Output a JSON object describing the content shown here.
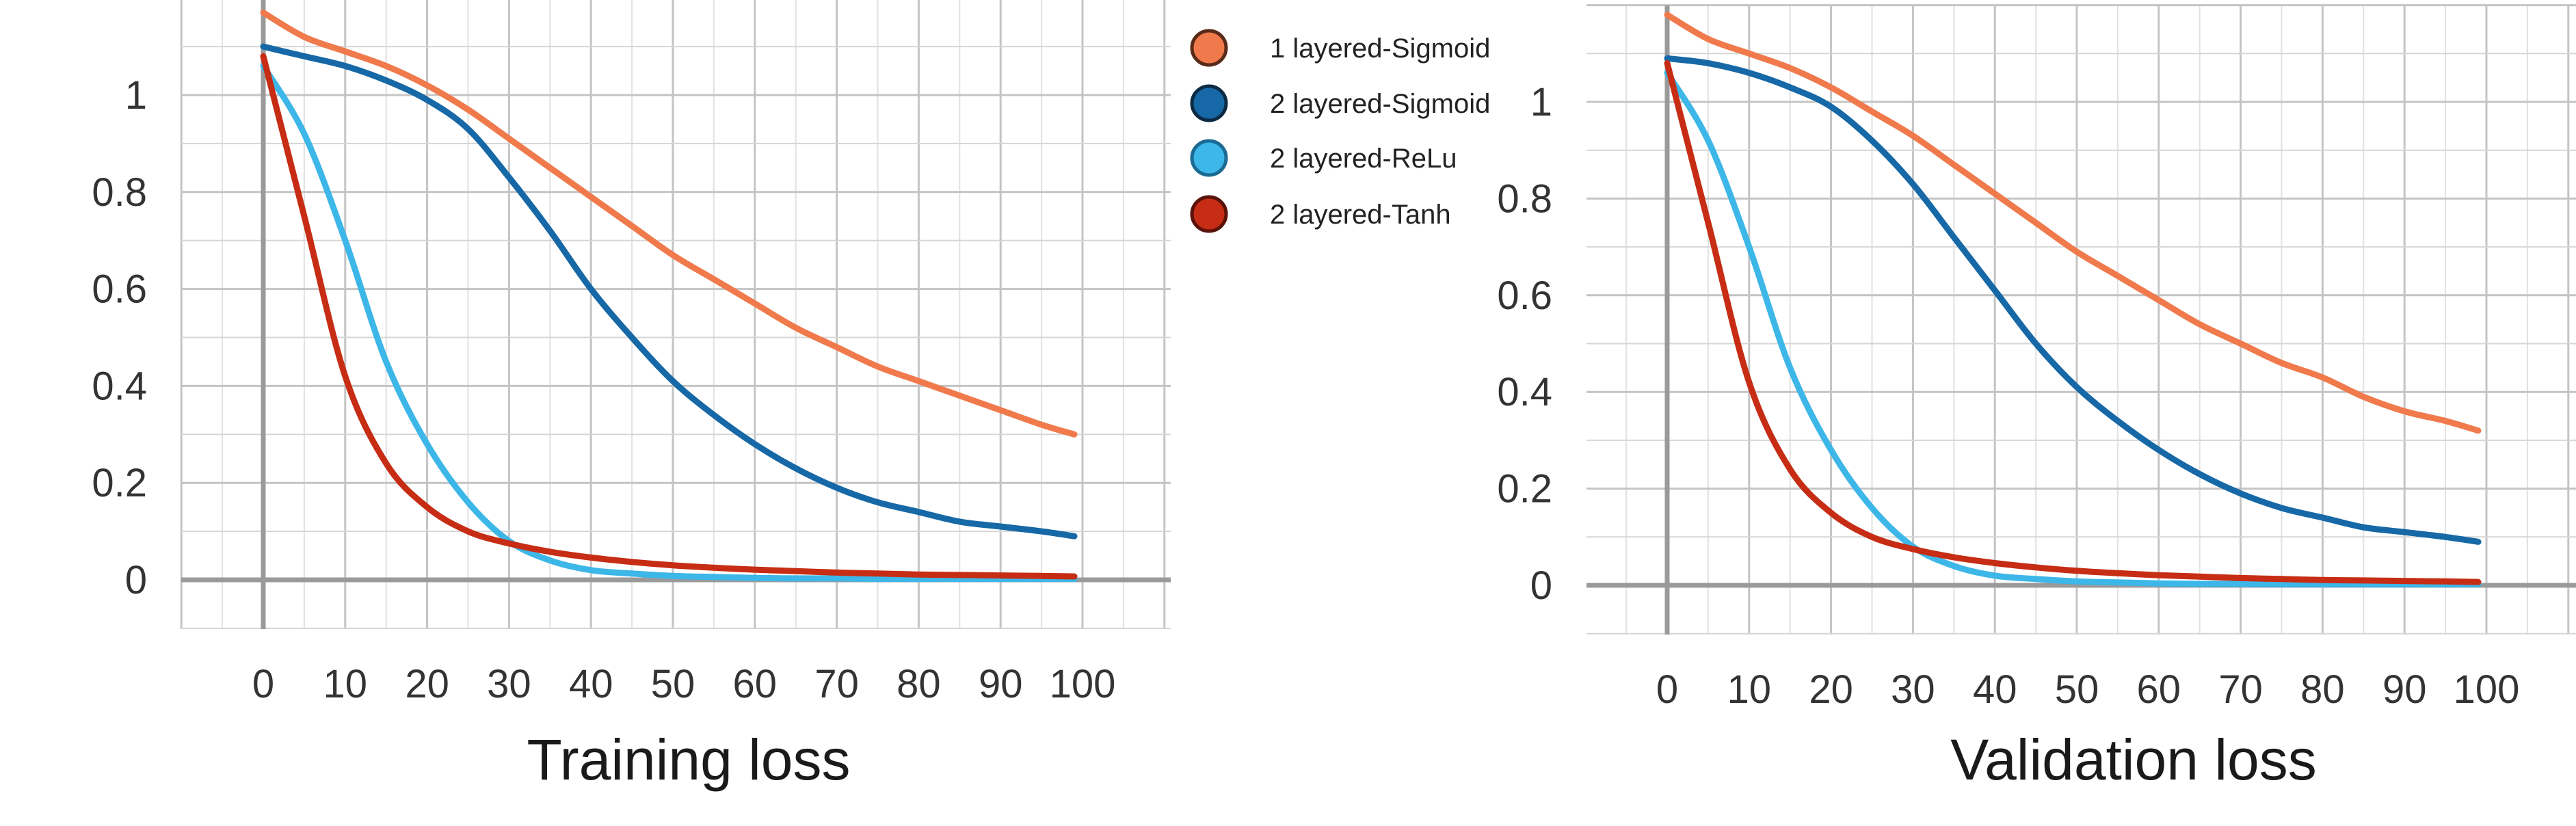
{
  "legend": {
    "items": [
      {
        "label": "1 layered-Sigmoid",
        "color": "#F07A4C"
      },
      {
        "label": "2 layered-Sigmoid",
        "color": "#1668A6"
      },
      {
        "label": "2 layered-ReLu",
        "color": "#3DB6E8"
      },
      {
        "label": "2 layered-Tanh",
        "color": "#C62D14"
      }
    ]
  },
  "chart_data": [
    {
      "type": "line",
      "xlabel": "Training loss",
      "ylabel": "",
      "xlim": [
        -10,
        110
      ],
      "ylim": [
        -0.1,
        1.2
      ],
      "xticks": [
        "0",
        "10",
        "20",
        "30",
        "40",
        "50",
        "60",
        "70",
        "80",
        "90",
        "100"
      ],
      "yticks": [
        "0",
        "0.2",
        "0.4",
        "0.6",
        "0.8",
        "1"
      ],
      "grid": true,
      "x": [
        0,
        5,
        10,
        15,
        20,
        25,
        30,
        35,
        40,
        45,
        50,
        55,
        60,
        65,
        70,
        75,
        80,
        85,
        90,
        95,
        99
      ],
      "series": [
        {
          "name": "1 layered-Sigmoid",
          "color": "#F07A4C",
          "values": [
            1.17,
            1.12,
            1.09,
            1.06,
            1.02,
            0.97,
            0.91,
            0.85,
            0.79,
            0.73,
            0.67,
            0.62,
            0.57,
            0.52,
            0.48,
            0.44,
            0.41,
            0.38,
            0.35,
            0.32,
            0.3
          ]
        },
        {
          "name": "2 layered-Sigmoid",
          "color": "#1668A6",
          "values": [
            1.1,
            1.08,
            1.06,
            1.03,
            0.99,
            0.93,
            0.83,
            0.72,
            0.6,
            0.5,
            0.41,
            0.34,
            0.28,
            0.23,
            0.19,
            0.16,
            0.14,
            0.12,
            0.11,
            0.1,
            0.09
          ]
        },
        {
          "name": "2 layered-ReLu",
          "color": "#3DB6E8",
          "values": [
            1.06,
            0.92,
            0.7,
            0.45,
            0.28,
            0.16,
            0.08,
            0.04,
            0.02,
            0.013,
            0.008,
            0.006,
            0.004,
            0.003,
            0.003,
            0.002,
            0.002,
            0.002,
            0.002,
            0.002,
            0.002
          ]
        },
        {
          "name": "2 layered-Tanh",
          "color": "#C62D14",
          "values": [
            1.08,
            0.75,
            0.42,
            0.24,
            0.15,
            0.1,
            0.075,
            0.058,
            0.046,
            0.037,
            0.03,
            0.025,
            0.021,
            0.018,
            0.015,
            0.013,
            0.011,
            0.01,
            0.009,
            0.008,
            0.007
          ]
        }
      ]
    },
    {
      "type": "line",
      "xlabel": "Validation loss",
      "ylabel": "",
      "xlim": [
        -10,
        110
      ],
      "ylim": [
        -0.1,
        1.2
      ],
      "xticks": [
        "0",
        "10",
        "20",
        "30",
        "40",
        "50",
        "60",
        "70",
        "80",
        "90",
        "100"
      ],
      "yticks": [
        "0",
        "0.2",
        "0.4",
        "0.6",
        "0.8",
        "1"
      ],
      "grid": true,
      "x": [
        0,
        5,
        10,
        15,
        20,
        25,
        30,
        35,
        40,
        45,
        50,
        55,
        60,
        65,
        70,
        75,
        80,
        85,
        90,
        95,
        99
      ],
      "series": [
        {
          "name": "1 layered-Sigmoid",
          "color": "#F07A4C",
          "values": [
            1.18,
            1.13,
            1.1,
            1.07,
            1.03,
            0.98,
            0.93,
            0.87,
            0.81,
            0.75,
            0.69,
            0.64,
            0.59,
            0.54,
            0.5,
            0.46,
            0.43,
            0.39,
            0.36,
            0.34,
            0.32
          ]
        },
        {
          "name": "2 layered-Sigmoid",
          "color": "#1668A6",
          "values": [
            1.09,
            1.08,
            1.06,
            1.03,
            0.99,
            0.92,
            0.83,
            0.72,
            0.61,
            0.5,
            0.41,
            0.34,
            0.28,
            0.23,
            0.19,
            0.16,
            0.14,
            0.12,
            0.11,
            0.1,
            0.09
          ]
        },
        {
          "name": "2 layered-ReLu",
          "color": "#3DB6E8",
          "values": [
            1.06,
            0.92,
            0.7,
            0.45,
            0.28,
            0.16,
            0.08,
            0.04,
            0.02,
            0.013,
            0.008,
            0.006,
            0.004,
            0.003,
            0.003,
            0.002,
            0.002,
            0.002,
            0.002,
            0.002,
            0.002
          ]
        },
        {
          "name": "2 layered-Tanh",
          "color": "#C62D14",
          "values": [
            1.08,
            0.75,
            0.42,
            0.24,
            0.15,
            0.1,
            0.075,
            0.058,
            0.046,
            0.037,
            0.03,
            0.025,
            0.021,
            0.018,
            0.015,
            0.013,
            0.011,
            0.01,
            0.009,
            0.008,
            0.007
          ]
        }
      ]
    }
  ]
}
